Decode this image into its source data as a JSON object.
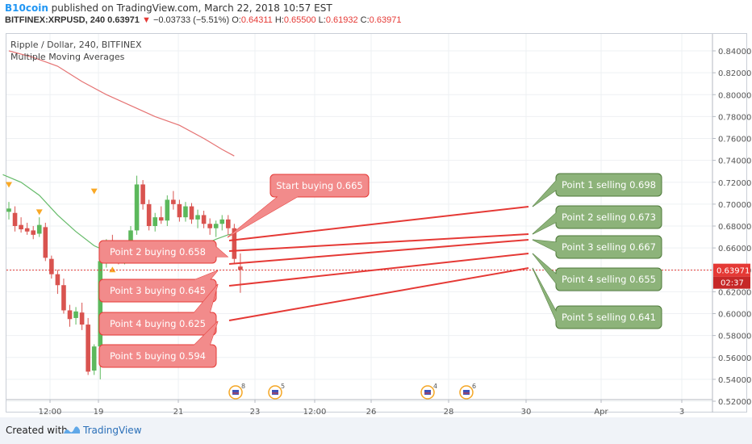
{
  "header": {
    "author": "B10coin",
    "published_text": " published on TradingView.com, March 22, 2018 10:57 EST",
    "symbol": "BITFINEX:XRPUSD, 240",
    "last": "0.63971",
    "change": "−0.03733 (−5.51%)",
    "open_label": "O:",
    "open": "0.64311",
    "high_label": "H:",
    "high": "0.65500",
    "low_label": "L:",
    "low": "0.61932",
    "close_label": "C:",
    "close": "0.63971"
  },
  "legend": {
    "title": "Ripple / Dollar, 240, BITFINEX",
    "indicator": "Multiple Moving Averages"
  },
  "footer": {
    "created_with": "Created with",
    "brand": "TradingView"
  },
  "chart_data": {
    "type": "candlestick",
    "y_ticks": [
      "0.84000",
      "0.82000",
      "0.80000",
      "0.78000",
      "0.76000",
      "0.74000",
      "0.72000",
      "0.70000",
      "0.68000",
      "0.66000",
      "0.64000",
      "0.62000",
      "0.60000",
      "0.58000",
      "0.56000",
      "0.54000",
      "0.52000"
    ],
    "y_range": [
      0.518,
      0.856
    ],
    "current_price_label": "0.63971",
    "countdown_label": "02:37",
    "x_ticks": [
      "12:00",
      "19",
      "21",
      "23",
      "12:00",
      "26",
      "28",
      "30",
      "Apr",
      "3"
    ],
    "candles": [
      {
        "o": 0.693,
        "h": 0.702,
        "l": 0.686,
        "c": 0.696
      },
      {
        "o": 0.692,
        "h": 0.698,
        "l": 0.675,
        "c": 0.68
      },
      {
        "o": 0.681,
        "h": 0.688,
        "l": 0.674,
        "c": 0.677
      },
      {
        "o": 0.678,
        "h": 0.683,
        "l": 0.672,
        "c": 0.675
      },
      {
        "o": 0.676,
        "h": 0.68,
        "l": 0.668,
        "c": 0.672
      },
      {
        "o": 0.673,
        "h": 0.688,
        "l": 0.67,
        "c": 0.681
      },
      {
        "o": 0.679,
        "h": 0.683,
        "l": 0.648,
        "c": 0.651
      },
      {
        "o": 0.65,
        "h": 0.653,
        "l": 0.632,
        "c": 0.636
      },
      {
        "o": 0.636,
        "h": 0.64,
        "l": 0.618,
        "c": 0.626
      },
      {
        "o": 0.626,
        "h": 0.632,
        "l": 0.6,
        "c": 0.603
      },
      {
        "o": 0.603,
        "h": 0.608,
        "l": 0.588,
        "c": 0.595
      },
      {
        "o": 0.596,
        "h": 0.606,
        "l": 0.59,
        "c": 0.602
      },
      {
        "o": 0.601,
        "h": 0.61,
        "l": 0.585,
        "c": 0.59
      },
      {
        "o": 0.59,
        "h": 0.596,
        "l": 0.544,
        "c": 0.547
      },
      {
        "o": 0.548,
        "h": 0.572,
        "l": 0.544,
        "c": 0.57
      },
      {
        "o": 0.57,
        "h": 0.652,
        "l": 0.54,
        "c": 0.648
      },
      {
        "o": 0.648,
        "h": 0.668,
        "l": 0.642,
        "c": 0.663
      },
      {
        "o": 0.663,
        "h": 0.672,
        "l": 0.65,
        "c": 0.655
      },
      {
        "o": 0.655,
        "h": 0.66,
        "l": 0.645,
        "c": 0.648
      },
      {
        "o": 0.648,
        "h": 0.662,
        "l": 0.645,
        "c": 0.658
      },
      {
        "o": 0.658,
        "h": 0.68,
        "l": 0.655,
        "c": 0.676
      },
      {
        "o": 0.676,
        "h": 0.726,
        "l": 0.672,
        "c": 0.718
      },
      {
        "o": 0.718,
        "h": 0.722,
        "l": 0.695,
        "c": 0.7
      },
      {
        "o": 0.7,
        "h": 0.704,
        "l": 0.676,
        "c": 0.68
      },
      {
        "o": 0.68,
        "h": 0.692,
        "l": 0.675,
        "c": 0.688
      },
      {
        "o": 0.688,
        "h": 0.698,
        "l": 0.682,
        "c": 0.685
      },
      {
        "o": 0.685,
        "h": 0.708,
        "l": 0.68,
        "c": 0.704
      },
      {
        "o": 0.704,
        "h": 0.712,
        "l": 0.695,
        "c": 0.7
      },
      {
        "o": 0.7,
        "h": 0.704,
        "l": 0.684,
        "c": 0.688
      },
      {
        "o": 0.688,
        "h": 0.702,
        "l": 0.684,
        "c": 0.698
      },
      {
        "o": 0.698,
        "h": 0.701,
        "l": 0.682,
        "c": 0.686
      },
      {
        "o": 0.686,
        "h": 0.695,
        "l": 0.678,
        "c": 0.69
      },
      {
        "o": 0.69,
        "h": 0.694,
        "l": 0.678,
        "c": 0.682
      },
      {
        "o": 0.682,
        "h": 0.687,
        "l": 0.672,
        "c": 0.678
      },
      {
        "o": 0.678,
        "h": 0.685,
        "l": 0.67,
        "c": 0.682
      },
      {
        "o": 0.682,
        "h": 0.69,
        "l": 0.676,
        "c": 0.686
      },
      {
        "o": 0.686,
        "h": 0.69,
        "l": 0.672,
        "c": 0.678
      },
      {
        "o": 0.678,
        "h": 0.682,
        "l": 0.645,
        "c": 0.65
      },
      {
        "o": 0.643,
        "h": 0.655,
        "l": 0.619,
        "c": 0.64
      }
    ],
    "ma_series": [
      {
        "name": "",
        "color": "#e57373",
        "points": [
          [
            0,
            0.84
          ],
          [
            4,
            0.834
          ],
          [
            8,
            0.826
          ],
          [
            12,
            0.812
          ],
          [
            16,
            0.8
          ],
          [
            20,
            0.79
          ],
          [
            24,
            0.78
          ],
          [
            28,
            0.772
          ],
          [
            32,
            0.76
          ],
          [
            35,
            0.75
          ],
          [
            37,
            0.744
          ]
        ]
      },
      {
        "name": "",
        "color": "#66bb6a",
        "points": [
          [
            -1,
            0.727
          ],
          [
            2,
            0.72
          ],
          [
            5,
            0.708
          ],
          [
            8,
            0.69
          ],
          [
            11,
            0.675
          ],
          [
            14,
            0.662
          ],
          [
            16,
            0.657
          ],
          [
            18,
            0.654
          ],
          [
            20,
            0.654
          ],
          [
            24,
            0.656
          ],
          [
            28,
            0.66
          ],
          [
            32,
            0.663
          ],
          [
            34,
            0.668
          ],
          [
            36,
            0.672
          ],
          [
            37,
            0.673
          ]
        ]
      }
    ],
    "markers": [
      {
        "shape": "triangle-down",
        "color": "#f9a825",
        "candle": 0,
        "price": 0.718
      },
      {
        "shape": "triangle-down",
        "color": "#f9a825",
        "candle": 5,
        "price": 0.693
      },
      {
        "shape": "triangle-down",
        "color": "#f9a825",
        "candle": 14,
        "price": 0.712
      },
      {
        "shape": "triangle-up",
        "color": "#f9a825",
        "candle": 17,
        "price": 0.64
      }
    ],
    "annotations": {
      "buying": [
        {
          "text": "Start buying 0.665",
          "price": 0.665
        },
        {
          "text": "Point 2 buying 0.658",
          "price": 0.658
        },
        {
          "text": "Point 3 buying 0.645",
          "price": 0.645
        },
        {
          "text": "Point 4 buying 0.625",
          "price": 0.625
        },
        {
          "text": "Point 5 buying 0.594",
          "price": 0.594
        }
      ],
      "selling": [
        {
          "text": "Point 1 selling 0.698",
          "price": 0.698
        },
        {
          "text": "Point 2 selling 0.673",
          "price": 0.673
        },
        {
          "text": "Point 3 selling 0.667",
          "price": 0.667
        },
        {
          "text": "Point 4 selling 0.655",
          "price": 0.655
        },
        {
          "text": "Point 5 selling 0.641",
          "price": 0.641
        }
      ]
    },
    "events": [
      {
        "label": "8",
        "x_tick_ref": "23"
      },
      {
        "label": "5",
        "x_tick_ref": "23"
      },
      {
        "label": "4",
        "x_tick_ref": "28"
      },
      {
        "label": "6",
        "x_tick_ref": "28"
      }
    ],
    "colors": {
      "up": "#5cb85c",
      "down": "#d9534f",
      "buy_box": "#f28b8b",
      "sell_box": "#8db37a",
      "price_line": "#e53935",
      "axis_text": "#555"
    }
  }
}
